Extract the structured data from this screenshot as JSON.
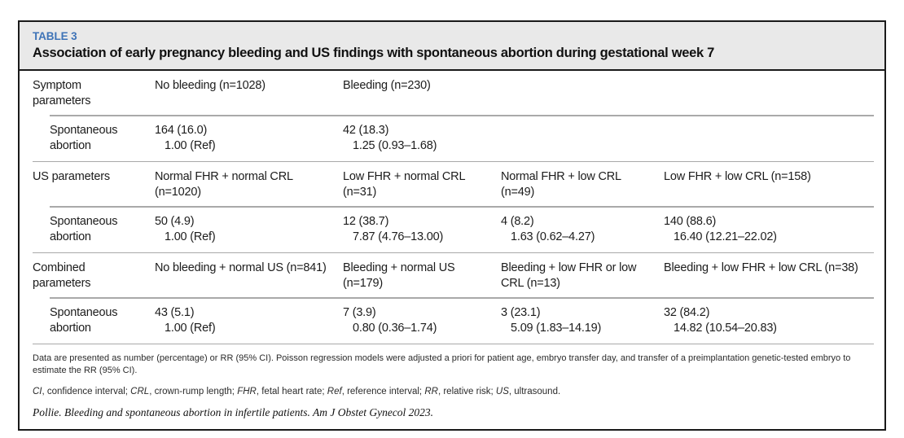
{
  "colors": {
    "accent_blue": "#3e73b7",
    "header_band_gray": "#e9e9e9",
    "rule_gray": "#a9a9a9",
    "border_black": "#1a1a1a"
  },
  "header": {
    "label": "TABLE 3",
    "title": "Association of early pregnancy bleeding and US findings with spontaneous abortion during gestational week 7"
  },
  "sections": [
    {
      "label": "Symptom parameters",
      "cols": [
        "No bleeding (n=1028)",
        "Bleeding (n=230)",
        "",
        ""
      ],
      "row_label": "Spontaneous abortion",
      "cells": [
        {
          "count": "164 (16.0)",
          "rr": "1.00 (Ref)"
        },
        {
          "count": "42 (18.3)",
          "rr": "1.25 (0.93–1.68)"
        },
        {
          "count": "",
          "rr": ""
        },
        {
          "count": "",
          "rr": ""
        }
      ]
    },
    {
      "label": "US parameters",
      "cols": [
        "Normal FHR + normal CRL (n=1020)",
        "Low FHR + normal CRL (n=31)",
        "Normal FHR + low CRL (n=49)",
        "Low FHR + low CRL (n=158)"
      ],
      "row_label": "Spontaneous abortion",
      "cells": [
        {
          "count": "50 (4.9)",
          "rr": "1.00 (Ref)"
        },
        {
          "count": "12 (38.7)",
          "rr": "7.87 (4.76–13.00)"
        },
        {
          "count": "4 (8.2)",
          "rr": "1.63 (0.62–4.27)"
        },
        {
          "count": "140 (88.6)",
          "rr": "16.40 (12.21–22.02)"
        }
      ]
    },
    {
      "label": "Combined parameters",
      "cols": [
        "No bleeding + normal US (n=841)",
        "Bleeding + normal US (n=179)",
        "Bleeding + low FHR or low CRL (n=13)",
        "Bleeding + low FHR + low CRL (n=38)"
      ],
      "row_label": "Spontaneous abortion",
      "cells": [
        {
          "count": "43 (5.1)",
          "rr": "1.00 (Ref)"
        },
        {
          "count": "7 (3.9)",
          "rr": "0.80 (0.36–1.74)"
        },
        {
          "count": "3 (23.1)",
          "rr": "5.09 (1.83–14.19)"
        },
        {
          "count": "32 (84.2)",
          "rr": "14.82 (10.54–20.83)"
        }
      ]
    }
  ],
  "footnotes": {
    "methods": "Data are presented as number (percentage) or RR (95% CI). Poisson regression models were adjusted a priori for patient age, embryo transfer day, and transfer of a preimplantation genetic-tested embryo to estimate the RR (95% CI).",
    "abbreviations": [
      {
        "abbr": "CI",
        "def": ", confidence interval; "
      },
      {
        "abbr": "CRL",
        "def": ", crown-rump length; "
      },
      {
        "abbr": "FHR",
        "def": ", fetal heart rate; "
      },
      {
        "abbr": "Ref",
        "def": ", reference interval; "
      },
      {
        "abbr": "RR",
        "def": ", relative risk; "
      },
      {
        "abbr": "US",
        "def": ", ultrasound."
      }
    ],
    "citation": "Pollie. Bleeding and spontaneous abortion in infertile patients. Am J Obstet Gynecol 2023."
  }
}
